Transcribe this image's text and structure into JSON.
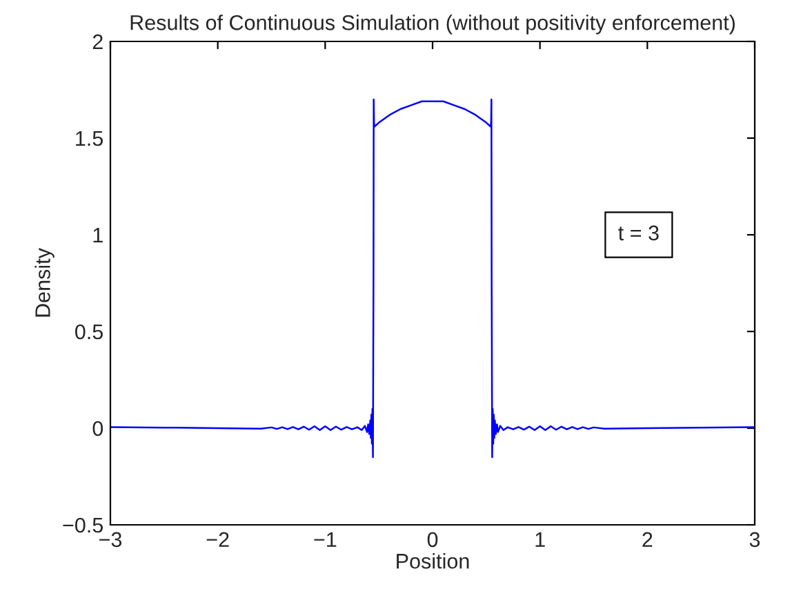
{
  "chart_data": {
    "type": "line",
    "title": "Results of Continuous Simulation (without positivity enforcement)",
    "xlabel": "Position",
    "ylabel": "Density",
    "series": [
      {
        "color": "#0000ff",
        "x": [
          -3,
          -2.5,
          -2,
          -1.6,
          -1.5,
          -1.45,
          -1.4,
          -1.35,
          -1.3,
          -1.25,
          -1.2,
          -1.15,
          -1.1,
          -1.05,
          -1.0,
          -0.95,
          -0.9,
          -0.85,
          -0.8,
          -0.75,
          -0.7,
          -0.66,
          -0.63,
          -0.61,
          -0.6,
          -0.59,
          -0.58,
          -0.575,
          -0.57,
          -0.565,
          -0.56,
          -0.555,
          -0.55,
          -0.548,
          -0.545,
          -0.54,
          -0.5,
          -0.4,
          -0.3,
          -0.2,
          -0.1,
          0,
          0.1,
          0.2,
          0.3,
          0.4,
          0.5,
          0.54,
          0.545,
          0.548,
          0.55,
          0.555,
          0.56,
          0.565,
          0.57,
          0.575,
          0.58,
          0.59,
          0.6,
          0.61,
          0.63,
          0.66,
          0.7,
          0.75,
          0.8,
          0.85,
          0.9,
          0.95,
          1.0,
          1.05,
          1.1,
          1.15,
          1.2,
          1.25,
          1.3,
          1.35,
          1.4,
          1.45,
          1.5,
          1.6,
          2,
          2.5,
          3
        ],
        "values": [
          0.005,
          0.003,
          0.0,
          -0.003,
          0.004,
          -0.004,
          0.005,
          -0.005,
          0.006,
          -0.006,
          0.008,
          -0.008,
          0.01,
          -0.01,
          0.01,
          -0.01,
          0.008,
          -0.008,
          0.006,
          -0.006,
          0.005,
          -0.01,
          0.012,
          -0.02,
          0.02,
          -0.03,
          0.04,
          -0.05,
          0.07,
          -0.08,
          0.1,
          -0.15,
          0.8,
          1.7,
          1.58,
          1.56,
          1.58,
          1.62,
          1.65,
          1.67,
          1.69,
          1.69,
          1.69,
          1.67,
          1.65,
          1.62,
          1.58,
          1.56,
          1.58,
          1.7,
          0.8,
          -0.15,
          0.1,
          -0.08,
          0.07,
          -0.05,
          0.04,
          -0.03,
          0.02,
          -0.02,
          0.012,
          -0.01,
          0.005,
          -0.006,
          0.006,
          -0.008,
          0.008,
          -0.01,
          0.01,
          -0.01,
          0.01,
          -0.008,
          0.008,
          -0.006,
          0.006,
          -0.005,
          0.005,
          -0.004,
          0.004,
          -0.003,
          0.0,
          0.003,
          0.005
        ]
      }
    ],
    "xlim": [
      -3,
      3
    ],
    "ylim": [
      -0.5,
      2
    ],
    "xticks": [
      {
        "value": -3,
        "label": "−3"
      },
      {
        "value": -2,
        "label": "−2"
      },
      {
        "value": -1,
        "label": "−1"
      },
      0,
      1,
      2,
      3
    ],
    "yticks": [
      {
        "value": -0.5,
        "label": "−0.5"
      },
      0,
      0.5,
      1,
      1.5,
      2
    ],
    "annotations": [
      "t = 3"
    ],
    "grid": false,
    "line_style": "solid",
    "marker": "none"
  }
}
